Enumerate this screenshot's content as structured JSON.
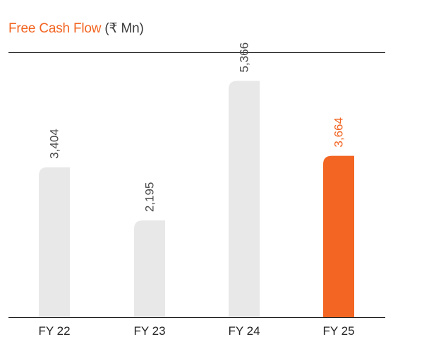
{
  "colors": {
    "accent": "#f26522",
    "bar_default": "#e8e8e8",
    "value_default": "#4a4a4a",
    "axis": "#1f1f1f"
  },
  "chart_data": {
    "type": "bar",
    "title": "Free Cash Flow",
    "title_unit": "(₹ Mn)",
    "categories": [
      "FY 22",
      "FY 23",
      "FY 24",
      "FY 25"
    ],
    "values": [
      3404,
      2195,
      5366,
      3664
    ],
    "value_labels": [
      "3,404",
      "2,195",
      "5,366",
      "3,664"
    ],
    "highlight_index": 3,
    "ylim": [
      0,
      6000
    ],
    "grid": false,
    "legend": "none"
  }
}
